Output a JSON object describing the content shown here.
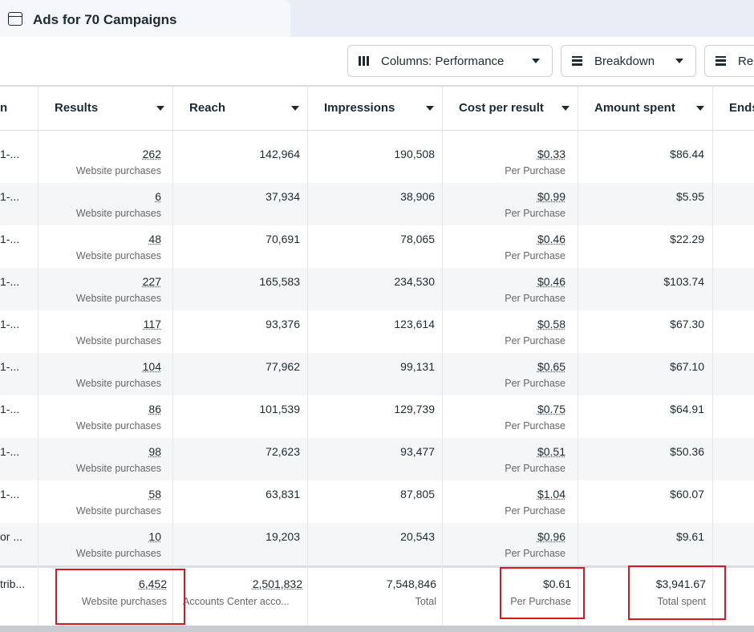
{
  "header": {
    "tab_title": "Ads for 70 Campaigns"
  },
  "toolbar": {
    "buttons": [
      "Columns: Performance",
      "Breakdown",
      "Re"
    ]
  },
  "table": {
    "columns": [
      "n",
      "Results",
      "Reach",
      "Impressions",
      "Cost per result",
      "Amount spent",
      "Ends"
    ],
    "rows": [
      {
        "name": "1-...",
        "results": "262",
        "results_sub": "Website purchases",
        "reach": "142,964",
        "impressions": "190,508",
        "cost": "$0.33",
        "cost_sub": "Per Purchase",
        "amount": "$86.44"
      },
      {
        "name": "1-...",
        "results": "6",
        "results_sub": "Website purchases",
        "reach": "37,934",
        "impressions": "38,906",
        "cost": "$0.99",
        "cost_sub": "Per Purchase",
        "amount": "$5.95"
      },
      {
        "name": "1-...",
        "results": "48",
        "results_sub": "Website purchases",
        "reach": "70,691",
        "impressions": "78,065",
        "cost": "$0.46",
        "cost_sub": "Per Purchase",
        "amount": "$22.29"
      },
      {
        "name": "1-...",
        "results": "227",
        "results_sub": "Website purchases",
        "reach": "165,583",
        "impressions": "234,530",
        "cost": "$0.46",
        "cost_sub": "Per Purchase",
        "amount": "$103.74"
      },
      {
        "name": "1-...",
        "results": "117",
        "results_sub": "Website purchases",
        "reach": "93,376",
        "impressions": "123,614",
        "cost": "$0.58",
        "cost_sub": "Per Purchase",
        "amount": "$67.30"
      },
      {
        "name": "1-...",
        "results": "104",
        "results_sub": "Website purchases",
        "reach": "77,962",
        "impressions": "99,131",
        "cost": "$0.65",
        "cost_sub": "Per Purchase",
        "amount": "$67.10"
      },
      {
        "name": "1-...",
        "results": "86",
        "results_sub": "Website purchases",
        "reach": "101,539",
        "impressions": "129,739",
        "cost": "$0.75",
        "cost_sub": "Per Purchase",
        "amount": "$64.91"
      },
      {
        "name": "1-...",
        "results": "98",
        "results_sub": "Website purchases",
        "reach": "72,623",
        "impressions": "93,477",
        "cost": "$0.51",
        "cost_sub": "Per Purchase",
        "amount": "$50.36"
      },
      {
        "name": "1-...",
        "results": "58",
        "results_sub": "Website purchases",
        "reach": "63,831",
        "impressions": "87,805",
        "cost": "$1.04",
        "cost_sub": "Per Purchase",
        "amount": "$60.07"
      },
      {
        "name": "or ...",
        "results": "10",
        "results_sub": "Website purchases",
        "reach": "19,203",
        "impressions": "20,543",
        "cost": "$0.96",
        "cost_sub": "Per Purchase",
        "amount": "$9.61"
      }
    ],
    "summary": {
      "name": "trib...",
      "results": "6,452",
      "results_sub": "Website purchases",
      "reach": "2,501,832",
      "reach_sub": "Accounts Center acco...",
      "impressions": "7,548,846",
      "impressions_sub": "Total",
      "cost": "$0.61",
      "cost_sub": "Per Purchase",
      "amount": "$3,941.67",
      "amount_sub": "Total spent"
    }
  }
}
